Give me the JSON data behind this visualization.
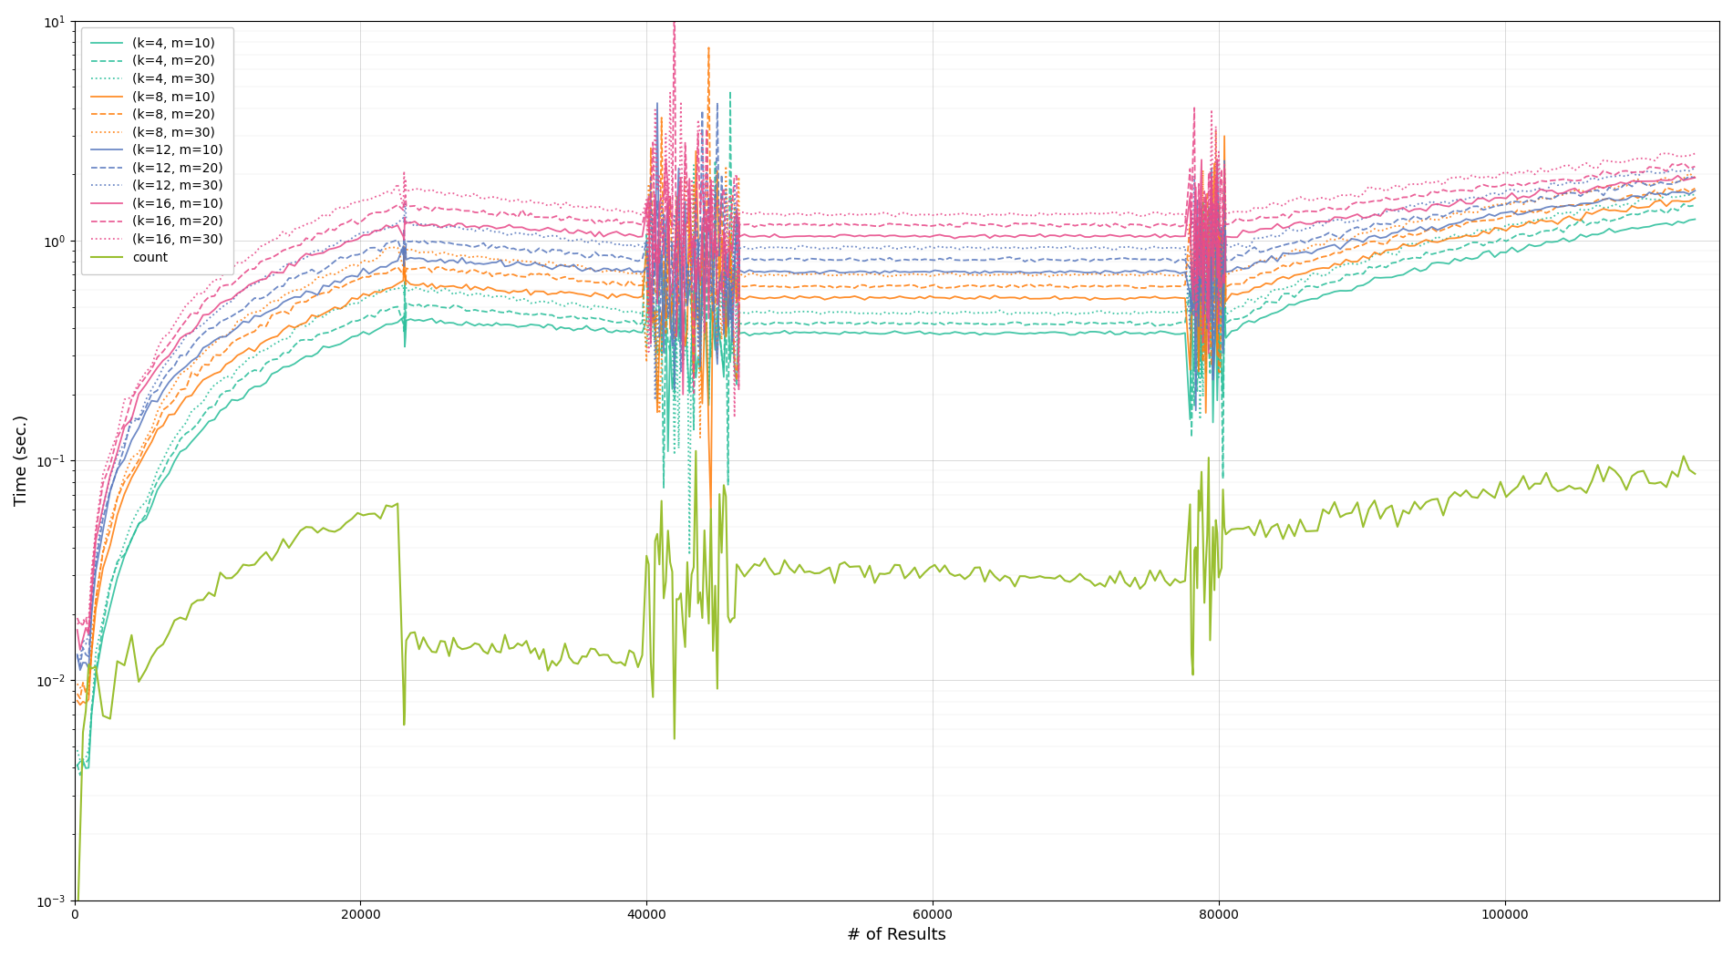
{
  "title": "",
  "xlabel": "# of Results",
  "ylabel": "Time (sec.)",
  "colors": {
    "k4": "#2bbf9b",
    "k8": "#ff7f0e",
    "k12": "#5b7abf",
    "k16": "#e84b8a",
    "count": "#9abf30"
  },
  "k_values": [
    4,
    8,
    12,
    16
  ],
  "m_values": [
    10,
    20,
    30
  ],
  "xlim": [
    0,
    115000
  ],
  "xticks": [
    0,
    20000,
    40000,
    60000,
    80000,
    100000
  ],
  "ylim_low": 0.001,
  "ylim_high": 10.0,
  "plateau_levels": {
    "k4_m10": 0.38,
    "k4_m20": 0.42,
    "k4_m30": 0.47,
    "k8_m10": 0.55,
    "k8_m20": 0.62,
    "k8_m30": 0.7,
    "k12_m10": 0.72,
    "k12_m20": 0.82,
    "k12_m30": 0.93,
    "k16_m10": 1.05,
    "k16_m20": 1.18,
    "k16_m30": 1.32
  },
  "end_levels": {
    "k4_m10": 1.25,
    "k4_m20": 1.45,
    "k4_m30": 1.65,
    "k8_m10": 1.55,
    "k8_m20": 1.75,
    "k8_m30": 1.98,
    "k12_m10": 1.72,
    "k12_m20": 1.92,
    "k12_m30": 2.15,
    "k16_m10": 1.95,
    "k16_m20": 2.2,
    "k16_m30": 2.48
  }
}
